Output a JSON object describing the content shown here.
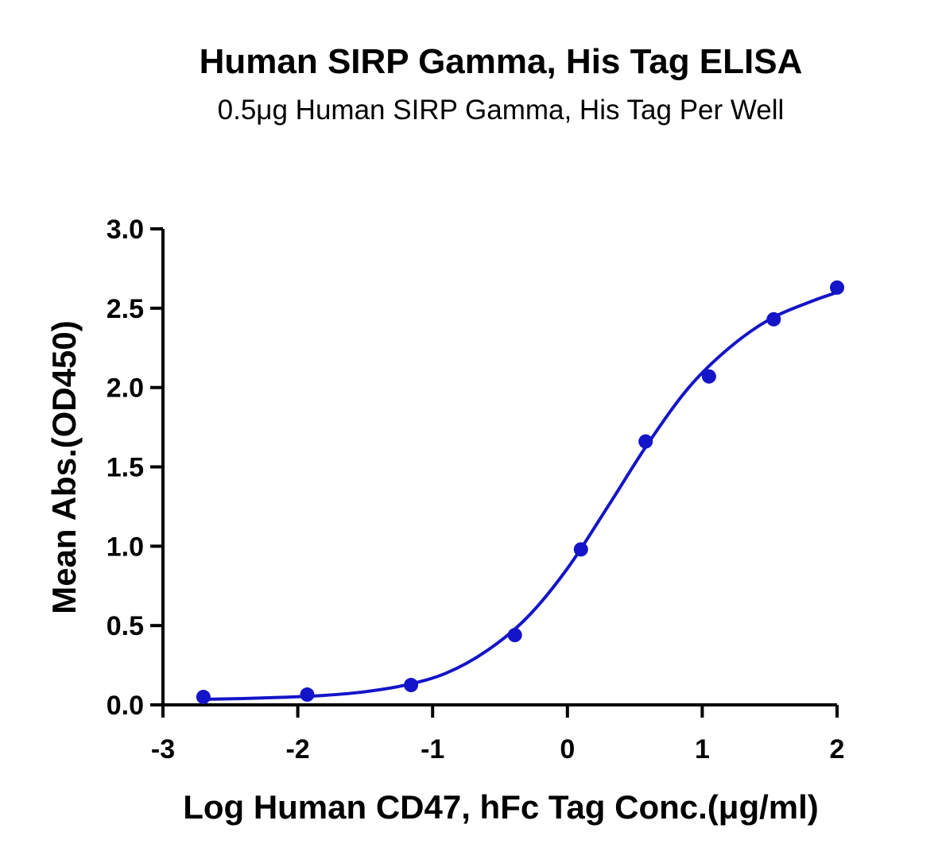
{
  "chart_data": {
    "type": "scatter",
    "title": "Human SIRP Gamma, His Tag ELISA",
    "subtitle": "0.5μg Human SIRP Gamma, His Tag Per Well",
    "xlabel": "Log Human CD47, hFc Tag Conc.(μg/ml)",
    "ylabel": "Mean Abs.(OD450)",
    "xlim": [
      -3,
      2
    ],
    "ylim": [
      0,
      3
    ],
    "x_ticks": [
      "-3",
      "-2",
      "-1",
      "0",
      "1",
      "2"
    ],
    "y_ticks": [
      "0.0",
      "0.5",
      "1.0",
      "1.5",
      "2.0",
      "2.5",
      "3.0"
    ],
    "grid": false,
    "legend": "none",
    "color": "#1414c8",
    "series": [
      {
        "x": [
          -2.7,
          -1.93,
          -1.16,
          -0.39,
          0.1,
          0.58,
          1.05,
          1.53,
          2.0
        ],
        "y": [
          0.05,
          0.065,
          0.125,
          0.44,
          0.98,
          1.66,
          2.07,
          2.43,
          2.63
        ],
        "fit": "sigmoidal",
        "fit_curve": {
          "x": [
            -2.7,
            -2.4,
            -2.1,
            -1.8,
            -1.5,
            -1.2,
            -0.9,
            -0.6,
            -0.3,
            0.0,
            0.3,
            0.6,
            0.9,
            1.2,
            1.5,
            1.8,
            2.0
          ],
          "y": [
            0.035,
            0.04,
            0.048,
            0.06,
            0.083,
            0.125,
            0.2,
            0.34,
            0.55,
            0.86,
            1.25,
            1.65,
            2.0,
            2.25,
            2.43,
            2.54,
            2.6
          ]
        }
      }
    ]
  }
}
